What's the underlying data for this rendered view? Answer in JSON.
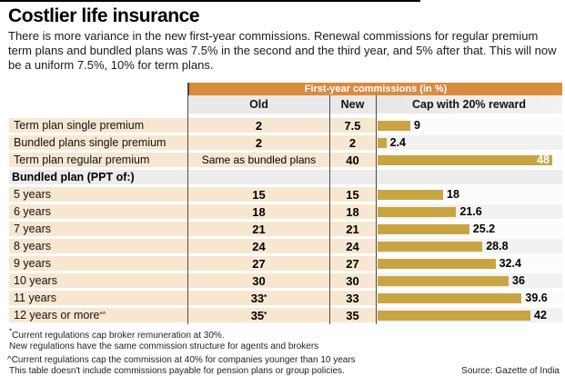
{
  "title": "Costlier life insurance",
  "subtitle": "There is more variance in the new first-year commissions. Renewal commissions for regular premium term plans and bundled plans was 7.5% in the second and the third year, and 5% after that. This will now be a uniform 7.5%, 10% for term plans.",
  "table": {
    "header": "First-year commissions (in %)",
    "columns": [
      "Old",
      "New",
      "Cap with 20% reward"
    ],
    "rows": [
      {
        "label": "Term plan single premium",
        "old": "2",
        "new": "7.5",
        "cap": 9,
        "cap_label": "9"
      },
      {
        "label": "Bundled plans single premium",
        "old": "2",
        "new": "2",
        "cap": 2.4,
        "cap_label": "2.4"
      },
      {
        "label": "Term plan regular premium",
        "old": "Same as bundled plans",
        "old_plain": true,
        "new": "40",
        "cap": 48,
        "cap_label": "48"
      },
      {
        "label": "Bundled plan (PPT of:)",
        "group": true
      },
      {
        "label": "5 years",
        "old": "15",
        "new": "15",
        "cap": 18,
        "cap_label": "18"
      },
      {
        "label": "6 years",
        "old": "18",
        "new": "18",
        "cap": 21.6,
        "cap_label": "21.6"
      },
      {
        "label": "7 years",
        "old": "21",
        "new": "21",
        "cap": 25.2,
        "cap_label": "25.2"
      },
      {
        "label": "8 years",
        "old": "24",
        "new": "24",
        "cap": 28.8,
        "cap_label": "28.8"
      },
      {
        "label": "9 years",
        "old": "27",
        "new": "27",
        "cap": 32.4,
        "cap_label": "32.4"
      },
      {
        "label": "10 years",
        "old": "30",
        "new": "30",
        "cap": 36,
        "cap_label": "36"
      },
      {
        "label": "11 years",
        "old": "33",
        "old_sup": "*",
        "new": "33",
        "cap": 39.6,
        "cap_label": "39.6"
      },
      {
        "label": "12 years or more",
        "label_sup": "*^",
        "old": "35",
        "old_sup": "*",
        "new": "35",
        "cap": 42,
        "cap_label": "42"
      }
    ]
  },
  "footnotes": [
    {
      "marker": "*",
      "text": "Current regulations cap broker remuneration at 30%."
    },
    {
      "marker": "",
      "text": "New regulations have the same commission structure for agents and brokers"
    },
    {
      "marker": "^",
      "text": "Current regulations cap the commission at 40% for companies younger than 10 years"
    },
    {
      "marker": "",
      "text": "This table doesn't include commissions payable for pension plans or group policies."
    }
  ],
  "source": "Source: Gazette of India",
  "colors": {
    "header_orange": "#d98b40",
    "bar_gold": "#c9a542",
    "row_peach": "#f8e7d0",
    "group_gray": "#ececec",
    "subheader_gray": "#e9e9e9"
  },
  "chart_data": {
    "type": "bar",
    "orientation": "horizontal",
    "title": "First-year commissions (in %)",
    "categories": [
      "Term plan single premium",
      "Bundled plans single premium",
      "Term plan regular premium",
      "5 years",
      "6 years",
      "7 years",
      "8 years",
      "9 years",
      "10 years",
      "11 years",
      "12 years or more*^"
    ],
    "group_label": "Bundled plan (PPT of:)",
    "series": [
      {
        "name": "Old",
        "values": [
          "2",
          "2",
          "Same as bundled plans",
          "15",
          "18",
          "21",
          "24",
          "27",
          "30",
          "33*",
          "35*"
        ]
      },
      {
        "name": "New",
        "values": [
          7.5,
          2,
          40,
          15,
          18,
          21,
          24,
          27,
          30,
          33,
          35
        ]
      },
      {
        "name": "Cap with 20% reward",
        "values": [
          9,
          2.4,
          48,
          18,
          21.6,
          25.2,
          28.8,
          32.4,
          36,
          39.6,
          42
        ]
      }
    ],
    "xlim": [
      0,
      50
    ],
    "bar_color": "#c9a542",
    "legend_position": "none",
    "grid": false,
    "note": "Only the 'Cap with 20% reward' series is drawn as bars; Old and New are table columns"
  }
}
